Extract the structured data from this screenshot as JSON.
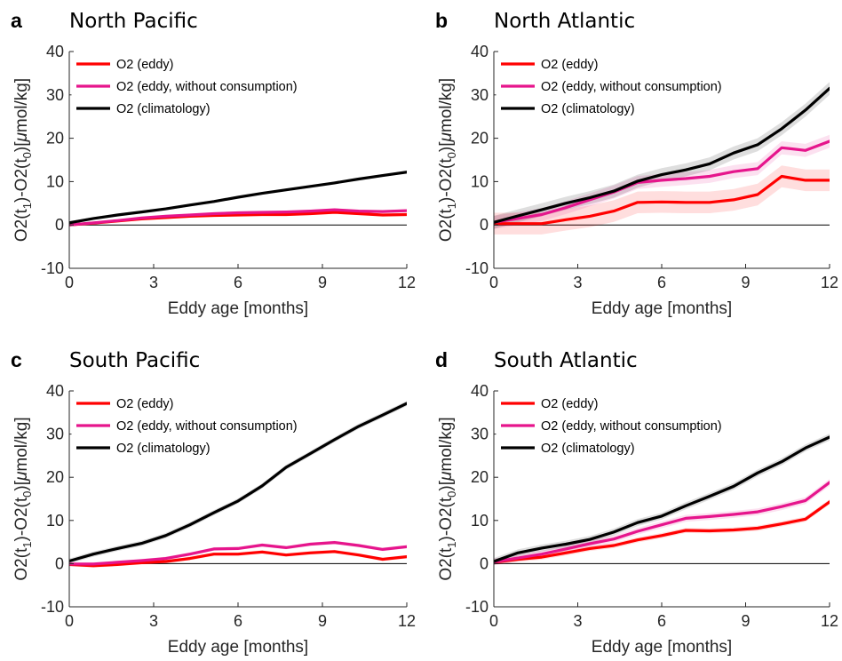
{
  "figure": {
    "xlabel": "Eddy age [months]",
    "ylabel": "O2(t1)-O2(t0)[μmol/kg]",
    "ylabel_parts": {
      "base": "O2(t",
      "sub1": "1",
      "mid": ")-O2(t",
      "sub0": "0",
      "end": ")[",
      "mu": "μ",
      "unit": "mol/kg]"
    }
  },
  "chart_data": [
    {
      "type": "line",
      "letter": "a",
      "title": "North Pacific",
      "xlabel": "Eddy age [months]",
      "ylabel": "O2(t1)-O2(t0)[μmol/kg]",
      "xlim": [
        0,
        12
      ],
      "ylim": [
        -10,
        40
      ],
      "xticks": [
        0,
        3,
        6,
        9,
        12
      ],
      "yticks": [
        -10,
        0,
        10,
        20,
        30,
        40
      ],
      "legend_position": "top-left",
      "x": [
        0,
        0.86,
        1.71,
        2.57,
        3.43,
        4.29,
        5.14,
        6.0,
        6.86,
        7.71,
        8.57,
        9.43,
        10.29,
        11.14,
        12.0
      ],
      "series": [
        {
          "name": "O2 (eddy)",
          "color": "#ff0000",
          "values": [
            0,
            0.4,
            0.9,
            1.4,
            1.7,
            2.0,
            2.2,
            2.3,
            2.4,
            2.4,
            2.6,
            2.9,
            2.6,
            2.3,
            2.4
          ],
          "band": 0.3
        },
        {
          "name": "O2 (eddy, without consumption)",
          "color": "#e6158c",
          "values": [
            0,
            0.5,
            1.0,
            1.6,
            2.0,
            2.3,
            2.6,
            2.8,
            2.9,
            3.0,
            3.2,
            3.5,
            3.2,
            3.1,
            3.3
          ],
          "band": 0.3
        },
        {
          "name": "O2 (climatology)",
          "color": "#000000",
          "values": [
            0.5,
            1.5,
            2.3,
            3.0,
            3.7,
            4.6,
            5.4,
            6.4,
            7.3,
            8.1,
            8.9,
            9.7,
            10.6,
            11.4,
            12.2
          ],
          "band": 0.3
        }
      ]
    },
    {
      "type": "line",
      "letter": "b",
      "title": "North Atlantic",
      "xlabel": "Eddy age [months]",
      "ylabel": "O2(t1)-O2(t0)[μmol/kg]",
      "xlim": [
        0,
        12
      ],
      "ylim": [
        -10,
        40
      ],
      "xticks": [
        0,
        3,
        6,
        9,
        12
      ],
      "yticks": [
        -10,
        0,
        10,
        20,
        30,
        40
      ],
      "legend_position": "top-left",
      "x": [
        0,
        0.86,
        1.71,
        2.57,
        3.43,
        4.29,
        5.14,
        6.0,
        6.86,
        7.71,
        8.57,
        9.43,
        10.29,
        11.14,
        12.0
      ],
      "series": [
        {
          "name": "O2 (eddy)",
          "color": "#ff0000",
          "values": [
            0.3,
            0.3,
            0.3,
            1.2,
            2.0,
            3.2,
            5.2,
            5.3,
            5.2,
            5.2,
            5.8,
            7.0,
            11.2,
            10.3,
            10.3
          ],
          "band": 2.5
        },
        {
          "name": "O2 (eddy, without consumption)",
          "color": "#e6158c",
          "values": [
            0.6,
            1.5,
            2.4,
            4.0,
            5.8,
            7.6,
            9.8,
            10.3,
            10.7,
            11.2,
            12.3,
            13.0,
            17.8,
            17.2,
            19.3
          ],
          "band": 1.5
        },
        {
          "name": "O2 (climatology)",
          "color": "#000000",
          "values": [
            0.6,
            2.1,
            3.5,
            5.0,
            6.3,
            7.8,
            10.1,
            11.6,
            12.7,
            14.1,
            16.6,
            18.5,
            22.2,
            26.5,
            31.5
          ],
          "band": 1.5
        }
      ]
    },
    {
      "type": "line",
      "letter": "c",
      "title": "South Pacific",
      "xlabel": "Eddy age [months]",
      "ylabel": "O2(t1)-O2(t0)[μmol/kg]",
      "xlim": [
        0,
        12
      ],
      "ylim": [
        -10,
        40
      ],
      "xticks": [
        0,
        3,
        6,
        9,
        12
      ],
      "yticks": [
        -10,
        0,
        10,
        20,
        30,
        40
      ],
      "legend_position": "top-left",
      "x": [
        0,
        0.86,
        1.71,
        2.57,
        3.43,
        4.29,
        5.14,
        6.0,
        6.86,
        7.71,
        8.57,
        9.43,
        10.29,
        11.14,
        12.0
      ],
      "series": [
        {
          "name": "O2 (eddy)",
          "color": "#ff0000",
          "values": [
            -0.2,
            -0.5,
            -0.2,
            0.2,
            0.5,
            1.2,
            2.2,
            2.2,
            2.7,
            2.0,
            2.5,
            2.8,
            2.0,
            1.0,
            1.6
          ],
          "band": 0.4
        },
        {
          "name": "O2 (eddy, without consumption)",
          "color": "#e6158c",
          "values": [
            -0.1,
            -0.1,
            0.3,
            0.7,
            1.2,
            2.2,
            3.4,
            3.5,
            4.3,
            3.7,
            4.5,
            4.9,
            4.2,
            3.3,
            3.9
          ],
          "band": 0.4
        },
        {
          "name": "O2 (climatology)",
          "color": "#000000",
          "values": [
            0.6,
            2.2,
            3.5,
            4.7,
            6.5,
            9.0,
            11.8,
            14.5,
            18.0,
            22.3,
            25.5,
            28.7,
            31.8,
            34.4,
            37.1
          ],
          "band": 0.6
        }
      ]
    },
    {
      "type": "line",
      "letter": "d",
      "title": "South Atlantic",
      "xlabel": "Eddy age [months]",
      "ylabel": "O2(t1)-O2(t0)[μmol/kg]",
      "xlim": [
        0,
        12
      ],
      "ylim": [
        -10,
        40
      ],
      "xticks": [
        0,
        3,
        6,
        9,
        12
      ],
      "yticks": [
        -10,
        0,
        10,
        20,
        30,
        40
      ],
      "legend_position": "top-left",
      "x": [
        0,
        0.86,
        1.71,
        2.57,
        3.43,
        4.29,
        5.14,
        6.0,
        6.86,
        7.71,
        8.57,
        9.43,
        10.29,
        11.14,
        12.0
      ],
      "series": [
        {
          "name": "O2 (eddy)",
          "color": "#ff0000",
          "values": [
            0.3,
            1.0,
            1.5,
            2.5,
            3.5,
            4.2,
            5.5,
            6.5,
            7.7,
            7.6,
            7.8,
            8.2,
            9.2,
            10.3,
            14.3
          ],
          "band": 0.6
        },
        {
          "name": "O2 (eddy, without consumption)",
          "color": "#e6158c",
          "values": [
            0.4,
            1.3,
            2.2,
            3.4,
            4.6,
            5.7,
            7.5,
            9.0,
            10.5,
            10.9,
            11.4,
            12.0,
            13.2,
            14.6,
            18.8
          ],
          "band": 0.8
        },
        {
          "name": "O2 (climatology)",
          "color": "#000000",
          "values": [
            0.5,
            2.5,
            3.6,
            4.5,
            5.6,
            7.3,
            9.5,
            11.0,
            13.4,
            15.6,
            17.9,
            21.0,
            23.6,
            26.8,
            29.3
          ],
          "band": 0.8
        }
      ]
    }
  ]
}
